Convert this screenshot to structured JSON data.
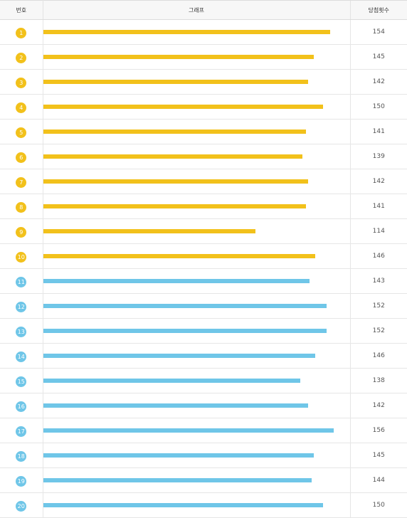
{
  "header": {
    "number": "번호",
    "graph": "그래프",
    "count": "당첨횟수"
  },
  "colors": {
    "yellow": "#f2c11b",
    "blue": "#6fc6e8"
  },
  "chart_data": {
    "type": "bar",
    "orientation": "horizontal",
    "categories": [
      "1",
      "2",
      "3",
      "4",
      "5",
      "6",
      "7",
      "8",
      "9",
      "10",
      "11",
      "12",
      "13",
      "14",
      "15",
      "16",
      "17",
      "18",
      "19",
      "20"
    ],
    "values": [
      154,
      145,
      142,
      150,
      141,
      139,
      142,
      141,
      114,
      146,
      143,
      152,
      152,
      146,
      138,
      142,
      156,
      145,
      144,
      150
    ],
    "color_groups": [
      "yellow",
      "yellow",
      "yellow",
      "yellow",
      "yellow",
      "yellow",
      "yellow",
      "yellow",
      "yellow",
      "yellow",
      "blue",
      "blue",
      "blue",
      "blue",
      "blue",
      "blue",
      "blue",
      "blue",
      "blue",
      "blue"
    ],
    "xlim": [
      0,
      165
    ],
    "grid": false,
    "legend": "none"
  }
}
